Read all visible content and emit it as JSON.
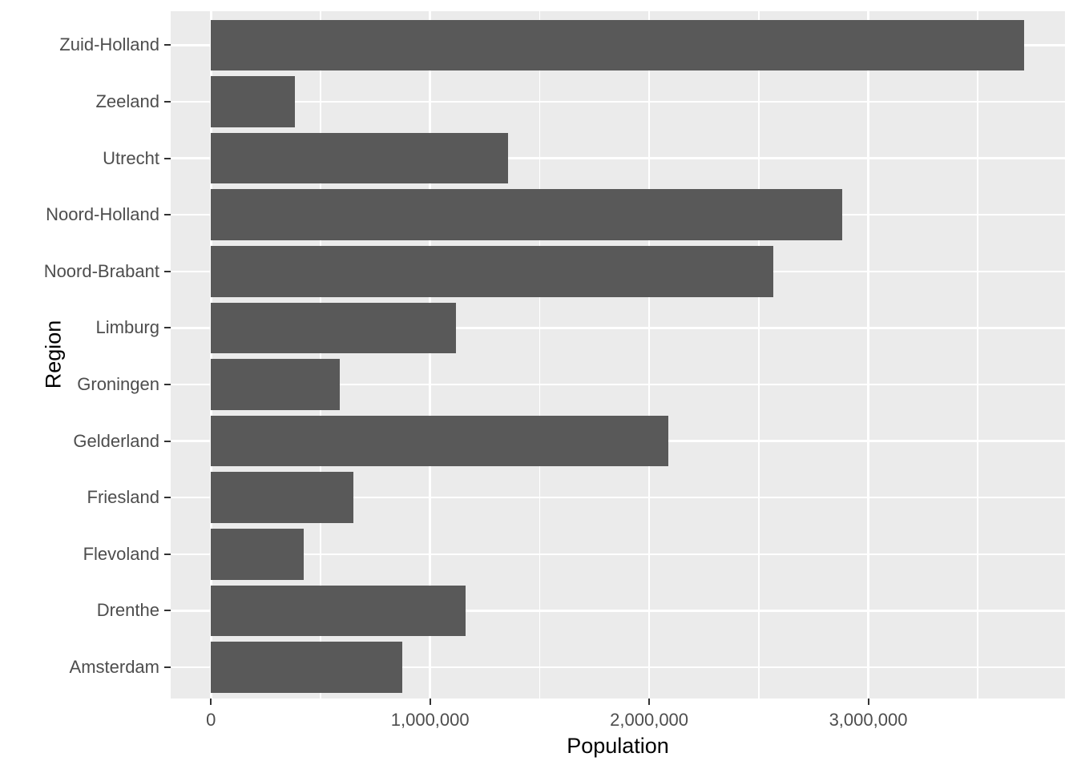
{
  "chart_data": {
    "type": "bar",
    "orientation": "horizontal",
    "title": "",
    "xlabel": "Population",
    "ylabel": "Region",
    "categories": [
      "Zuid-Holland",
      "Zeeland",
      "Utrecht",
      "Noord-Holland",
      "Noord-Brabant",
      "Limburg",
      "Groningen",
      "Gelderland",
      "Friesland",
      "Flevoland",
      "Drenthe",
      "Amsterdam"
    ],
    "values": [
      3710000,
      384000,
      1356000,
      2880000,
      2568000,
      1119000,
      588000,
      2088000,
      650000,
      422000,
      1162000,
      874000
    ],
    "x_axis": {
      "ticks": [
        0,
        1000000,
        2000000,
        3000000
      ],
      "tick_labels": [
        "0",
        "1,000,000",
        "2,000,000",
        "3,000,000"
      ],
      "minor_ticks": [
        500000,
        1500000,
        2500000,
        3500000
      ],
      "range_shown": [
        -186000,
        3896000
      ]
    },
    "legend": "none",
    "grid": "white major and minor vertical lines, white major horizontal lines on gray panel",
    "style": {
      "panel_background": "#EBEBEB",
      "bar_fill": "#595959",
      "gridline_color": "#FFFFFF",
      "tick_label_color": "#4D4D4D",
      "tick_mark_color": "#333333",
      "axis_title_color": "#000000",
      "page_background": "#FFFFFF"
    }
  }
}
